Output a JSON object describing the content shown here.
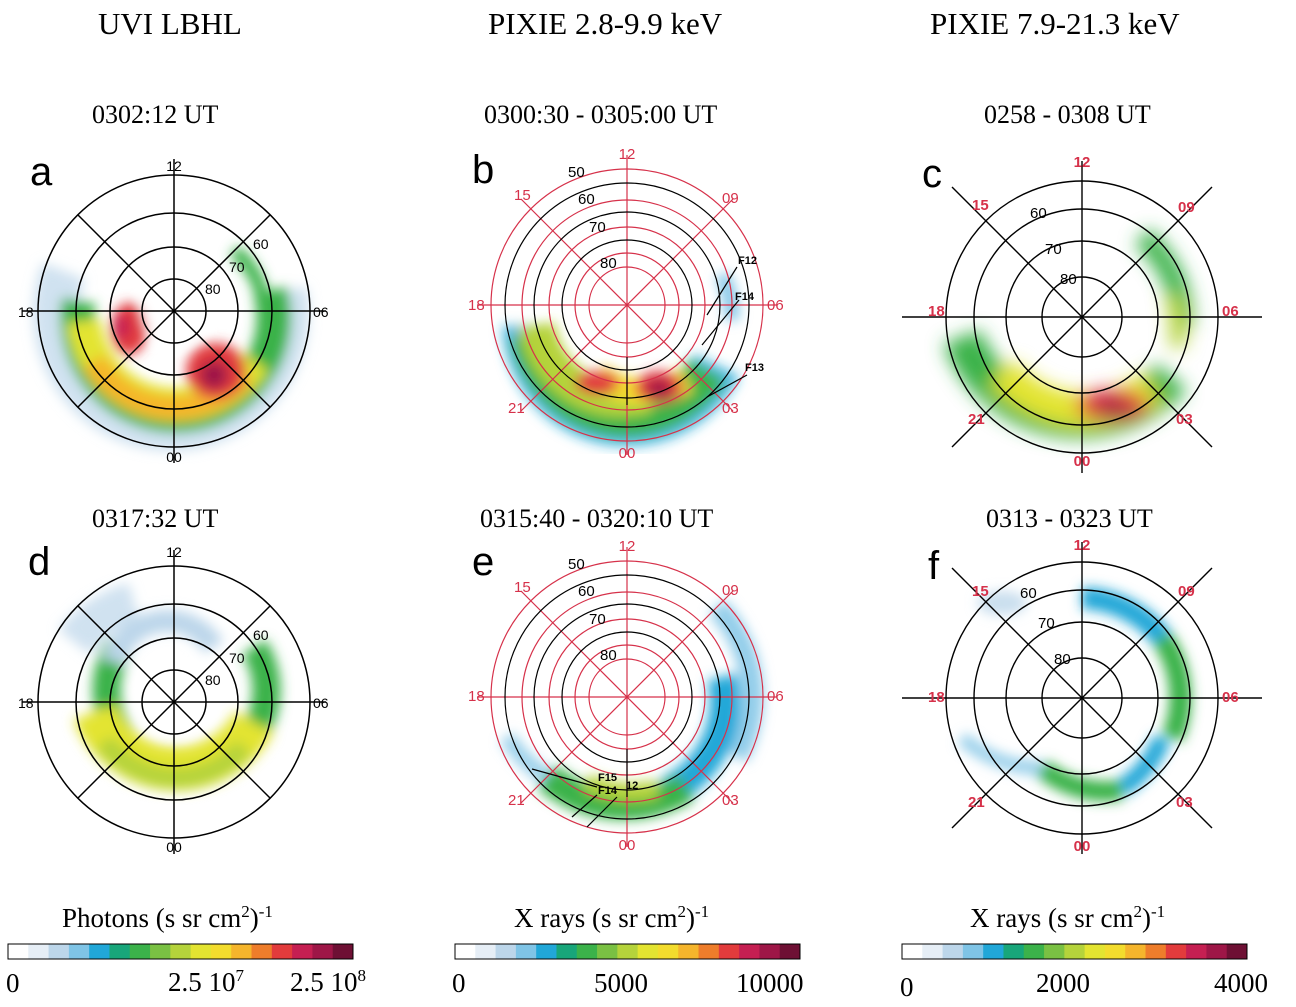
{
  "columns": [
    {
      "title": "UVI LBHL",
      "times": [
        "0302:12 UT",
        "0317:32 UT"
      ],
      "letters": [
        "a",
        "d"
      ],
      "colorbar": {
        "label": "Photons (s sr cm",
        "label_sup": "2",
        "label_close": ")",
        "label_exp": "-1",
        "ticks": [
          {
            "base": "0",
            "sup": ""
          },
          {
            "base": "2.5 10",
            "sup": "7"
          },
          {
            "base": "2.5 10",
            "sup": "8"
          }
        ]
      }
    },
    {
      "title": "PIXIE  2.8-9.9 keV",
      "times": [
        "0300:30 - 0305:00 UT",
        "0315:40 - 0320:10 UT"
      ],
      "letters": [
        "b",
        "e"
      ],
      "colorbar": {
        "label": "X rays (s sr cm",
        "label_sup": "2",
        "label_close": ")",
        "label_exp": "-1",
        "ticks": [
          {
            "base": "0",
            "sup": ""
          },
          {
            "base": "5000",
            "sup": ""
          },
          {
            "base": "10000",
            "sup": ""
          }
        ]
      }
    },
    {
      "title": "PIXIE  7.9-21.3 keV",
      "times": [
        "0258 - 0308 UT",
        "0313 - 0323 UT"
      ],
      "letters": [
        "c",
        "f"
      ],
      "colorbar": {
        "label": "X rays (s sr cm",
        "label_sup": "2",
        "label_close": ")",
        "label_exp": "-1",
        "ticks": [
          {
            "base": "0",
            "sup": ""
          },
          {
            "base": "2000",
            "sup": ""
          },
          {
            "base": "4000",
            "sup": ""
          }
        ]
      }
    }
  ],
  "mlt_labels": {
    "top": "12",
    "bottom": "00",
    "left": "18",
    "right": "06",
    "diag": [
      "15",
      "09",
      "21",
      "03"
    ]
  },
  "lat_labels": [
    "50",
    "60",
    "70",
    "80"
  ],
  "satellite_labels_b": [
    "F12",
    "F14",
    "F13"
  ],
  "satellite_labels_e": [
    "F15",
    "F14",
    "12"
  ],
  "colors": {
    "grid_black": "#000000",
    "grid_red": "#d6314a",
    "colormap": [
      "#ffffff",
      "#e6eef6",
      "#bcd6ea",
      "#7fc4e6",
      "#21a7d8",
      "#18a67a",
      "#3bb24a",
      "#7ac143",
      "#b5d33b",
      "#e3e431",
      "#f3dc2d",
      "#f5b52c",
      "#ee7d2b",
      "#e23b3c",
      "#c51f52",
      "#9e1647",
      "#6e1034"
    ]
  }
}
